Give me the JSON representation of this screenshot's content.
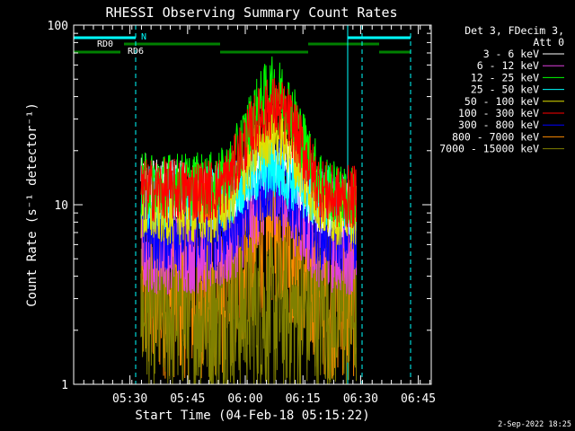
{
  "chart_data": {
    "type": "line",
    "title": "RHESSI Observing Summary Count Rates",
    "xlabel": "Start Time (04-Feb-18 05:15:22)",
    "ylabel": "Count Rate (s⁻¹ detector⁻¹)",
    "ylog": true,
    "ylim": [
      1,
      100
    ],
    "xlim_minutes": [
      0,
      93
    ],
    "x_tick_labels": [
      "05:30",
      "05:45",
      "06:00",
      "06:15",
      "06:30",
      "06:45"
    ],
    "y_tick_labels": [
      "1",
      "10",
      "100"
    ],
    "legend_header": [
      "Det 3, FDecim 3,",
      "Att 0"
    ],
    "legend_position": "right",
    "footer_date": "2-Sep-2022 18:25",
    "flag_labels": {
      "rd0": "RD0",
      "rd6": "RD6",
      "n": "N"
    },
    "series": [
      {
        "name": "3 - 6 keV",
        "color": "#ffffff",
        "values": [
          14,
          12,
          12,
          12,
          12,
          12,
          11,
          12,
          11,
          11,
          12,
          12,
          13,
          14,
          16,
          18,
          18,
          18,
          16,
          14,
          12,
          11,
          10,
          10,
          9,
          10,
          10
        ]
      },
      {
        "name": "6 - 12 keV",
        "color": "#e040e0",
        "values": [
          6,
          6,
          6,
          6,
          6,
          6,
          6,
          6,
          6,
          6,
          6,
          7,
          8,
          9,
          11,
          12,
          13,
          12,
          11,
          9,
          8,
          7,
          6,
          6,
          6,
          6,
          6
        ]
      },
      {
        "name": "12 - 25 keV",
        "color": "#00ff00",
        "values": [
          13,
          13,
          13,
          13,
          13,
          13,
          13,
          13,
          13,
          13,
          14,
          16,
          21,
          27,
          34,
          41,
          45,
          42,
          35,
          27,
          20,
          16,
          13,
          12,
          11,
          11,
          11
        ]
      },
      {
        "name": "25 - 50 keV",
        "color": "#00ffff",
        "values": [
          11,
          11,
          11,
          11,
          11,
          11,
          11,
          11,
          11,
          11,
          11,
          12,
          13,
          14,
          15,
          16,
          16,
          15,
          14,
          13,
          12,
          11,
          11,
          11,
          10,
          10,
          10
        ]
      },
      {
        "name": "50 - 100 keV",
        "color": "#e0e000",
        "values": [
          9,
          9,
          9,
          9,
          9,
          9,
          9,
          9,
          9,
          9,
          10,
          11,
          14,
          17,
          21,
          24,
          25,
          24,
          21,
          17,
          13,
          11,
          10,
          9,
          9,
          9,
          9
        ]
      },
      {
        "name": "100 - 300 keV",
        "color": "#ff0000",
        "values": [
          12,
          12,
          12,
          12,
          12,
          12,
          12,
          12,
          12,
          12,
          13,
          15,
          19,
          24,
          29,
          33,
          35,
          33,
          29,
          23,
          18,
          14,
          12,
          11,
          11,
          11,
          11
        ]
      },
      {
        "name": "300 - 800 keV",
        "color": "#0000ff",
        "values": [
          8,
          8,
          8,
          8,
          8,
          8,
          8,
          8,
          8,
          8,
          8,
          9,
          10,
          11,
          13,
          14,
          15,
          14,
          13,
          11,
          10,
          9,
          8,
          8,
          8,
          8,
          8
        ]
      },
      {
        "name": "800 - 7000 keV",
        "color": "#ff8c00",
        "values": [
          3,
          3,
          3,
          3,
          3,
          3,
          3,
          3,
          3,
          3,
          3,
          3.5,
          4,
          5,
          6,
          7,
          7.5,
          7,
          6,
          5,
          4,
          3.5,
          3,
          3,
          3,
          3,
          3
        ]
      },
      {
        "name": "7000 - 15000 keV",
        "color": "#808000",
        "values": [
          2.5,
          2.5,
          2.5,
          2.5,
          2.5,
          2.5,
          2.5,
          2.5,
          2.5,
          2.5,
          2.5,
          2.5,
          2.5,
          2.5,
          2.5,
          2.5,
          2.5,
          2.5,
          2.5,
          2.5,
          2.5,
          2.5,
          2.5,
          2.5,
          2.5,
          2.5,
          2.5
        ]
      }
    ]
  }
}
